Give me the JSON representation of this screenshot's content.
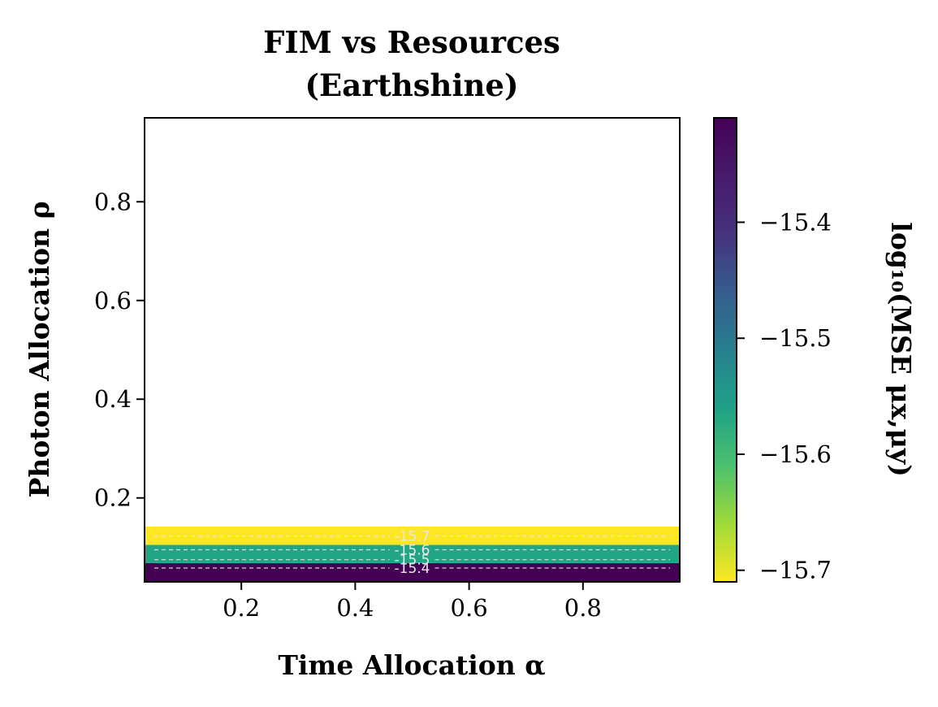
{
  "chart_data": {
    "type": "heatmap",
    "title": [
      "FIM vs Resources",
      "(Earthshine)"
    ],
    "xlabel": "Time Allocation α",
    "ylabel": "Photon Allocation ρ",
    "xlim": [
      0.03,
      0.97
    ],
    "ylim": [
      0.03,
      0.97
    ],
    "xticks": [
      0.2,
      0.4,
      0.6,
      0.8
    ],
    "xtick_labels": [
      "0.2",
      "0.4",
      "0.6",
      "0.8"
    ],
    "yticks": [
      0.2,
      0.4,
      0.6,
      0.8
    ],
    "ytick_labels": [
      "0.2",
      "0.4",
      "0.6",
      "0.8"
    ],
    "bands": [
      {
        "y0": 0.03,
        "y1": 0.068,
        "value": -15.35,
        "color": "#440154"
      },
      {
        "y0": 0.068,
        "y1": 0.105,
        "value": -15.55,
        "color": "#21a585"
      },
      {
        "y0": 0.105,
        "y1": 0.142,
        "value": -15.72,
        "color": "#fde725"
      }
    ],
    "contours": [
      {
        "y": 0.058,
        "label": "-15.4"
      },
      {
        "y": 0.075,
        "label": "-15.5"
      },
      {
        "y": 0.095,
        "label": "-15.6"
      },
      {
        "y": 0.123,
        "label": "-15.7"
      }
    ],
    "contour_color": "#e8e8e8",
    "colorbar": {
      "label": "log₁₀(MSE μx,μy)",
      "range": [
        -15.71,
        -15.31
      ],
      "ticks": [
        -15.4,
        -15.5,
        -15.6,
        -15.7
      ],
      "tick_labels": [
        "−15.4",
        "−15.5",
        "−15.6",
        "−15.7"
      ],
      "colormap": "viridis_r"
    },
    "grid": false
  }
}
